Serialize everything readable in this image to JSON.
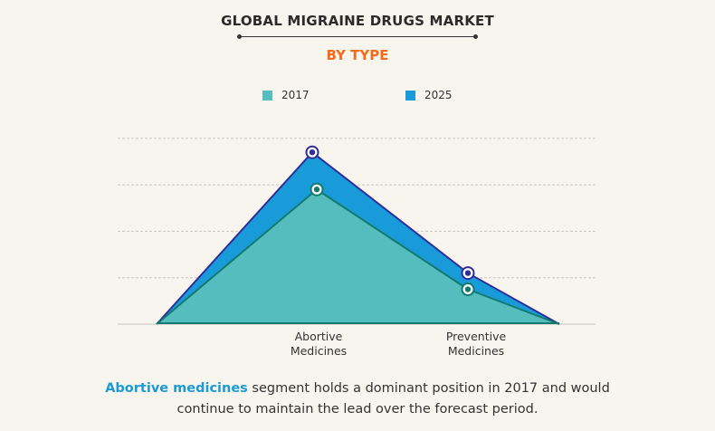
{
  "header": {
    "title": "GLOBAL MIGRAINE DRUGS MARKET",
    "subtitle": "BY TYPE"
  },
  "colors": {
    "series_2017_fill": "#56bdbf",
    "series_2017_line": "#127a6e",
    "series_2025_fill": "#1a9bd9",
    "series_2025_line": "#2e2e9a",
    "subtitle": "#f26a1b",
    "highlight": "#1c9ad6"
  },
  "chart_data": {
    "type": "area",
    "title": "GLOBAL MIGRAINE DRUGS MARKET",
    "subtitle": "BY TYPE",
    "categories": [
      "Abortive Medicines",
      "Preventive Medicines"
    ],
    "category_labels": [
      [
        "Abortive",
        "Medicines"
      ],
      [
        "Preventive",
        "Medicines"
      ]
    ],
    "series": [
      {
        "name": "2017",
        "values": [
          2.9,
          0.75
        ]
      },
      {
        "name": "2025",
        "values": [
          3.7,
          1.1
        ]
      }
    ],
    "ylim": [
      0,
      4
    ],
    "y_gridlines": [
      1,
      2,
      3,
      4
    ],
    "grid": true,
    "legend": "top-center",
    "xlabel": "",
    "ylabel": ""
  },
  "caption": {
    "highlight": "Abortive medicines",
    "line1_rest": " segment holds a dominant position in 2017 and would",
    "line2": "continue to maintain the lead over the forecast period."
  }
}
